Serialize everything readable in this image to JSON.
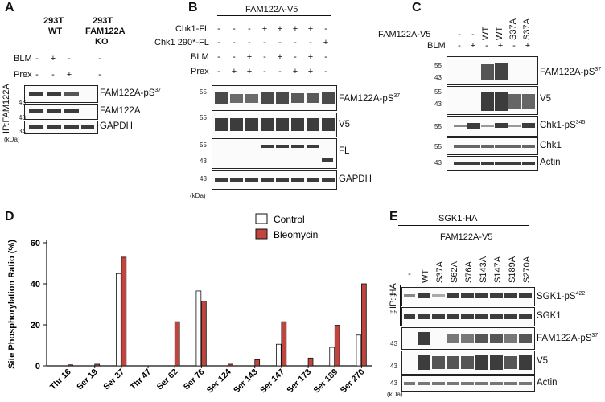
{
  "panels": {
    "A": {
      "letter": "A",
      "col1_line1": "293T",
      "col1_line2": "WT",
      "col2_line1": "293T",
      "col2_line2": "FAM122A",
      "col2_line3": "KO",
      "row_blm": "BLM",
      "row_prex": "Prex",
      "blm_signs": [
        "-",
        "+",
        "-",
        "-"
      ],
      "prex_signs": [
        "-",
        "-",
        "+",
        "-"
      ],
      "ip_label": "IP:FAM122A",
      "blot_labels": [
        "FAM122A-pS",
        "FAM122A",
        "GAPDH"
      ],
      "sup37": "37",
      "mw_markers": [
        "43",
        "43",
        "34"
      ],
      "kda": "(kDa)"
    },
    "B": {
      "letter": "B",
      "header": "FAM122A-V5",
      "rows": [
        {
          "label": "Chk1-FL",
          "signs": [
            "-",
            "-",
            "-",
            "+",
            "+",
            "+",
            "+",
            "-"
          ]
        },
        {
          "label": "Chk1 290*-FL",
          "signs": [
            "-",
            "-",
            "-",
            "-",
            "-",
            "-",
            "-",
            "+"
          ]
        },
        {
          "label": "BLM",
          "signs": [
            "-",
            "-",
            "+",
            "-",
            "+",
            "-",
            "+",
            "-"
          ]
        },
        {
          "label": "Prex",
          "signs": [
            "-",
            "+",
            "+",
            "-",
            "-",
            "+",
            "+",
            "-"
          ]
        }
      ],
      "blot_labels": [
        "FAM122A-pS",
        "V5",
        "FL",
        "GAPDH"
      ],
      "sup37": "37",
      "mw_markers": [
        "55",
        "55",
        "55",
        "43",
        "43"
      ],
      "kda": "(kDa)"
    },
    "C": {
      "letter": "C",
      "row_fam": "FAM122A-V5",
      "row_blm": "BLM",
      "fam_items": [
        "-",
        "-",
        "WT",
        "WT",
        "S37A",
        "S37A"
      ],
      "blm_signs": [
        "-",
        "+",
        "-",
        "+",
        "-",
        "+"
      ],
      "blot_labels": [
        "FAM122A-pS",
        "V5",
        "Chk1-pS",
        "Chk1",
        "Actin"
      ],
      "sup37": "37",
      "sup345": "345",
      "mw_markers": [
        "55",
        "43",
        "55",
        "43",
        "55",
        "55",
        "43"
      ]
    },
    "D": {
      "letter": "D"
    },
    "E": {
      "letter": "E",
      "header_top": "SGK1-HA",
      "header_sub": "FAM122A-V5",
      "lanes": [
        "-",
        "WT",
        "S37A",
        "S62A",
        "S76A",
        "S143A",
        "S147A",
        "S189A",
        "S270A"
      ],
      "ip_label": "IP: HA",
      "blot_labels": [
        "SGK1-pS",
        "SGK1",
        "FAM122A-pS",
        "V5",
        "Actin"
      ],
      "sup422": "422",
      "sup37": "37",
      "mw_markers": [
        "55",
        "55",
        "43",
        "43",
        "43"
      ],
      "kda": "(kDa)"
    }
  },
  "chart_data": {
    "type": "bar",
    "title": "",
    "xlabel": "",
    "ylabel": "Site Phosphorylation Ratio (%)",
    "ylim": [
      0,
      60
    ],
    "yticks": [
      "0",
      "20",
      "40",
      "60"
    ],
    "grid": false,
    "legend_placement": "top-right",
    "categories": [
      "Thr 16",
      "Ser 19",
      "Ser 37",
      "Thr 47",
      "Ser 62",
      "Ser 76",
      "Ser 124",
      "Ser 143",
      "Ser 147",
      "Ser 173",
      "Ser 189",
      "Ser 270"
    ],
    "series": [
      {
        "name": "Control",
        "color": "#ffffff",
        "values": [
          0,
          0,
          45,
          0,
          0,
          36.5,
          0,
          0,
          10.5,
          0,
          9,
          15
        ]
      },
      {
        "name": "Bleomycin",
        "color": "#c0453e",
        "values": [
          0.5,
          0.8,
          53,
          0,
          21.5,
          31.5,
          0.8,
          3,
          21.5,
          3.8,
          19.8,
          40
        ]
      }
    ]
  }
}
